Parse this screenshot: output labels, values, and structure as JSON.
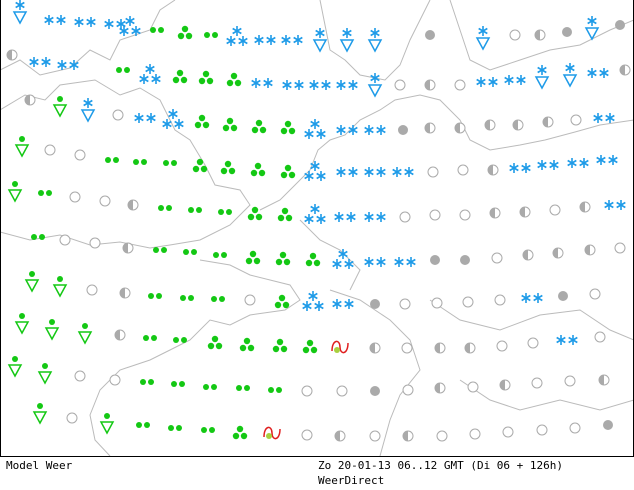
{
  "footer": {
    "left": "Model Weer",
    "right": "Zo 20-01-13 06..12 GMT (Di 06 + 126h)",
    "source": "WeerDirect"
  }
}
